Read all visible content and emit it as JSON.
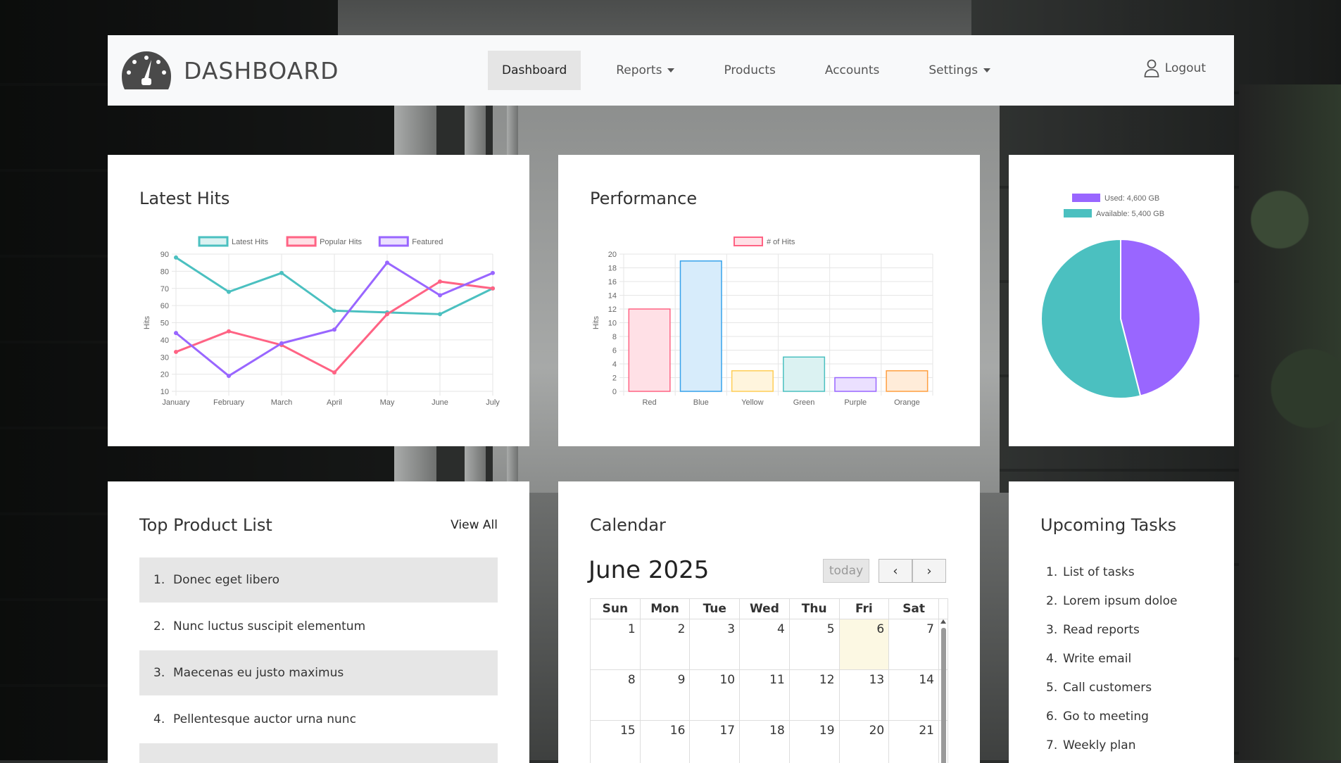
{
  "navbar": {
    "brand": "DASHBOARD",
    "items": [
      {
        "label": "Dashboard",
        "active": true,
        "dropdown": false
      },
      {
        "label": "Reports",
        "active": false,
        "dropdown": true
      },
      {
        "label": "Products",
        "active": false,
        "dropdown": false
      },
      {
        "label": "Accounts",
        "active": false,
        "dropdown": false
      },
      {
        "label": "Settings",
        "active": false,
        "dropdown": true
      }
    ],
    "logout": "Logout"
  },
  "latest_hits": {
    "title": "Latest Hits",
    "chart_data": {
      "type": "line",
      "categories": [
        "January",
        "February",
        "March",
        "April",
        "May",
        "June",
        "July"
      ],
      "ylabel": "Hits",
      "ylim": [
        10,
        90
      ],
      "yticks": [
        "90",
        "80",
        "70",
        "60",
        "50",
        "40",
        "30",
        "20",
        "10"
      ],
      "legend": "top",
      "grid": true,
      "series": [
        {
          "name": "Latest Hits",
          "color": "#4bc0c0",
          "values": [
            88,
            68,
            79,
            57,
            56,
            55,
            70
          ]
        },
        {
          "name": "Popular Hits",
          "color": "#ff6384",
          "values": [
            33,
            45,
            37,
            21,
            55,
            74,
            70
          ]
        },
        {
          "name": "Featured",
          "color": "#9966ff",
          "values": [
            44,
            19,
            38,
            46,
            85,
            66,
            79
          ]
        }
      ]
    }
  },
  "performance": {
    "title": "Performance",
    "chart_data": {
      "type": "bar",
      "categories": [
        "Red",
        "Blue",
        "Yellow",
        "Green",
        "Purple",
        "Orange"
      ],
      "values": [
        12,
        19,
        3,
        5,
        2,
        3
      ],
      "ylabel": "Hits",
      "ylim": [
        0,
        20
      ],
      "yticks": [
        "20",
        "18",
        "16",
        "14",
        "12",
        "10",
        "8",
        "6",
        "4",
        "2",
        "0"
      ],
      "legend": "top",
      "grid": true,
      "series_name": "# of Hits",
      "fills": [
        "#ffe0e6",
        "#d7ecfb",
        "#fff5dd",
        "#dbf2f2",
        "#ebe0ff",
        "#ffecd9"
      ],
      "strokes": [
        "#ff6384",
        "#36a2eb",
        "#ffce56",
        "#4bc0c0",
        "#9966ff",
        "#ff9f40"
      ]
    }
  },
  "storage": {
    "chart_data": {
      "type": "pie",
      "legend": "top",
      "slices": [
        {
          "label": "Used: 4,600 GB",
          "value": 4600,
          "color": "#9966ff"
        },
        {
          "label": "Available: 5,400 GB",
          "value": 5400,
          "color": "#4bc0c0"
        }
      ]
    }
  },
  "products": {
    "title": "Top Product List",
    "view_all": "View All",
    "items": [
      {
        "num": "1.",
        "label": "Donec eget libero"
      },
      {
        "num": "2.",
        "label": "Nunc luctus suscipit elementum"
      },
      {
        "num": "3.",
        "label": "Maecenas eu justo maximus"
      },
      {
        "num": "4.",
        "label": "Pellentesque auctor urna nunc"
      },
      {
        "num": "",
        "label": ""
      }
    ]
  },
  "calendar": {
    "title": "Calendar",
    "month": "June 2025",
    "today_label": "today",
    "prev_icon": "‹",
    "next_icon": "›",
    "days": [
      "Sun",
      "Mon",
      "Tue",
      "Wed",
      "Thu",
      "Fri",
      "Sat"
    ],
    "weeks": [
      [
        "1",
        "2",
        "3",
        "4",
        "5",
        "6",
        "7"
      ],
      [
        "8",
        "9",
        "10",
        "11",
        "12",
        "13",
        "14"
      ],
      [
        "15",
        "16",
        "17",
        "18",
        "19",
        "20",
        "21"
      ]
    ],
    "today_date": "6"
  },
  "tasks": {
    "title": "Upcoming Tasks",
    "items": [
      {
        "num": "1.",
        "label": "List of tasks"
      },
      {
        "num": "2.",
        "label": "Lorem ipsum doloe"
      },
      {
        "num": "3.",
        "label": "Read reports"
      },
      {
        "num": "4.",
        "label": "Write email"
      },
      {
        "num": "5.",
        "label": "Call customers"
      },
      {
        "num": "6.",
        "label": "Go to meeting"
      },
      {
        "num": "7.",
        "label": "Weekly plan"
      }
    ]
  }
}
